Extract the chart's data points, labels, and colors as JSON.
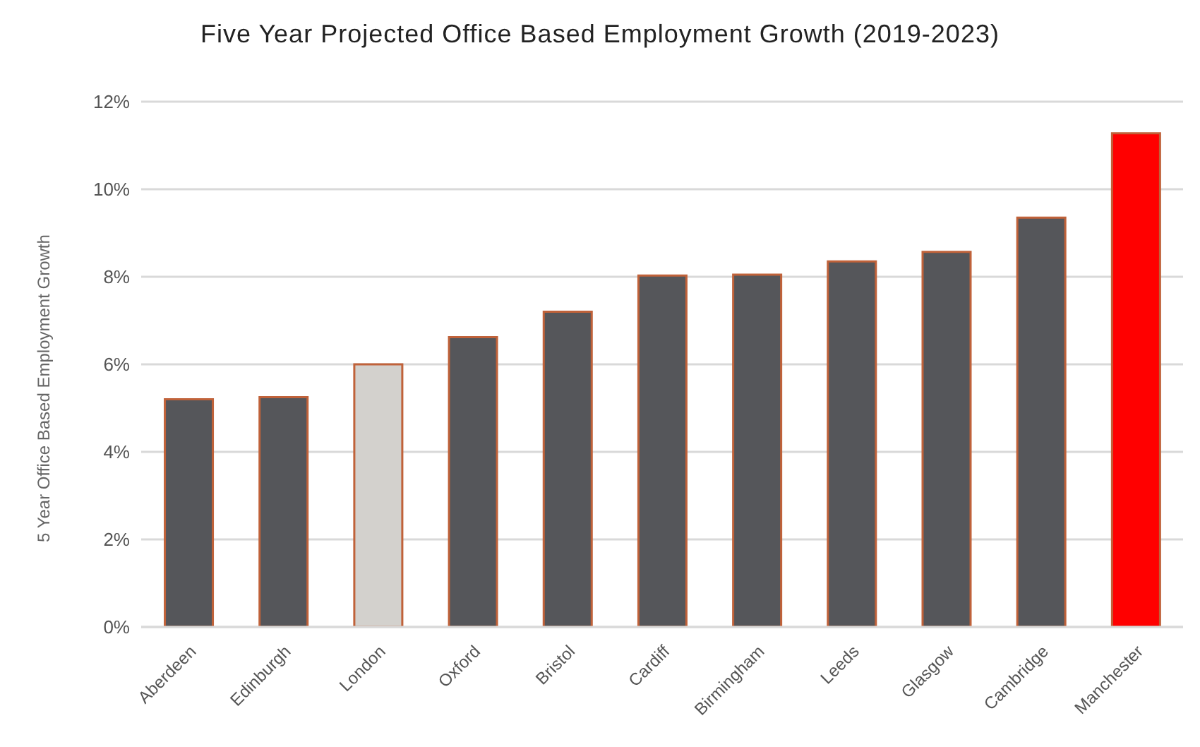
{
  "chart_data": {
    "type": "bar",
    "title": "Five Year Projected Office Based Employment Growth (2019-2023)",
    "ylabel": "5 Year Office Based Employment Growth",
    "categories": [
      "Aberdeen",
      "Edinburgh",
      "London",
      "Oxford",
      "Bristol",
      "Cardiff",
      "Birmingham",
      "Leeds",
      "Glasgow",
      "Cambridge",
      "Manchester"
    ],
    "values": [
      5.2,
      5.25,
      6.0,
      6.62,
      7.2,
      8.03,
      8.05,
      8.35,
      8.57,
      9.35,
      11.28
    ],
    "colors": [
      "#55565a",
      "#55565a",
      "#d3d1cd",
      "#55565a",
      "#55565a",
      "#55565a",
      "#55565a",
      "#55565a",
      "#55565a",
      "#55565a",
      "#ff0000"
    ],
    "ylim": [
      0,
      12
    ],
    "yticks": [
      {
        "value": 0,
        "label": "0%"
      },
      {
        "value": 2,
        "label": "2%"
      },
      {
        "value": 4,
        "label": "4%"
      },
      {
        "value": 6,
        "label": "6%"
      },
      {
        "value": 8,
        "label": "8%"
      },
      {
        "value": 10,
        "label": "10%"
      },
      {
        "value": 12,
        "label": "12%"
      }
    ],
    "grid": "y",
    "legend": false
  }
}
